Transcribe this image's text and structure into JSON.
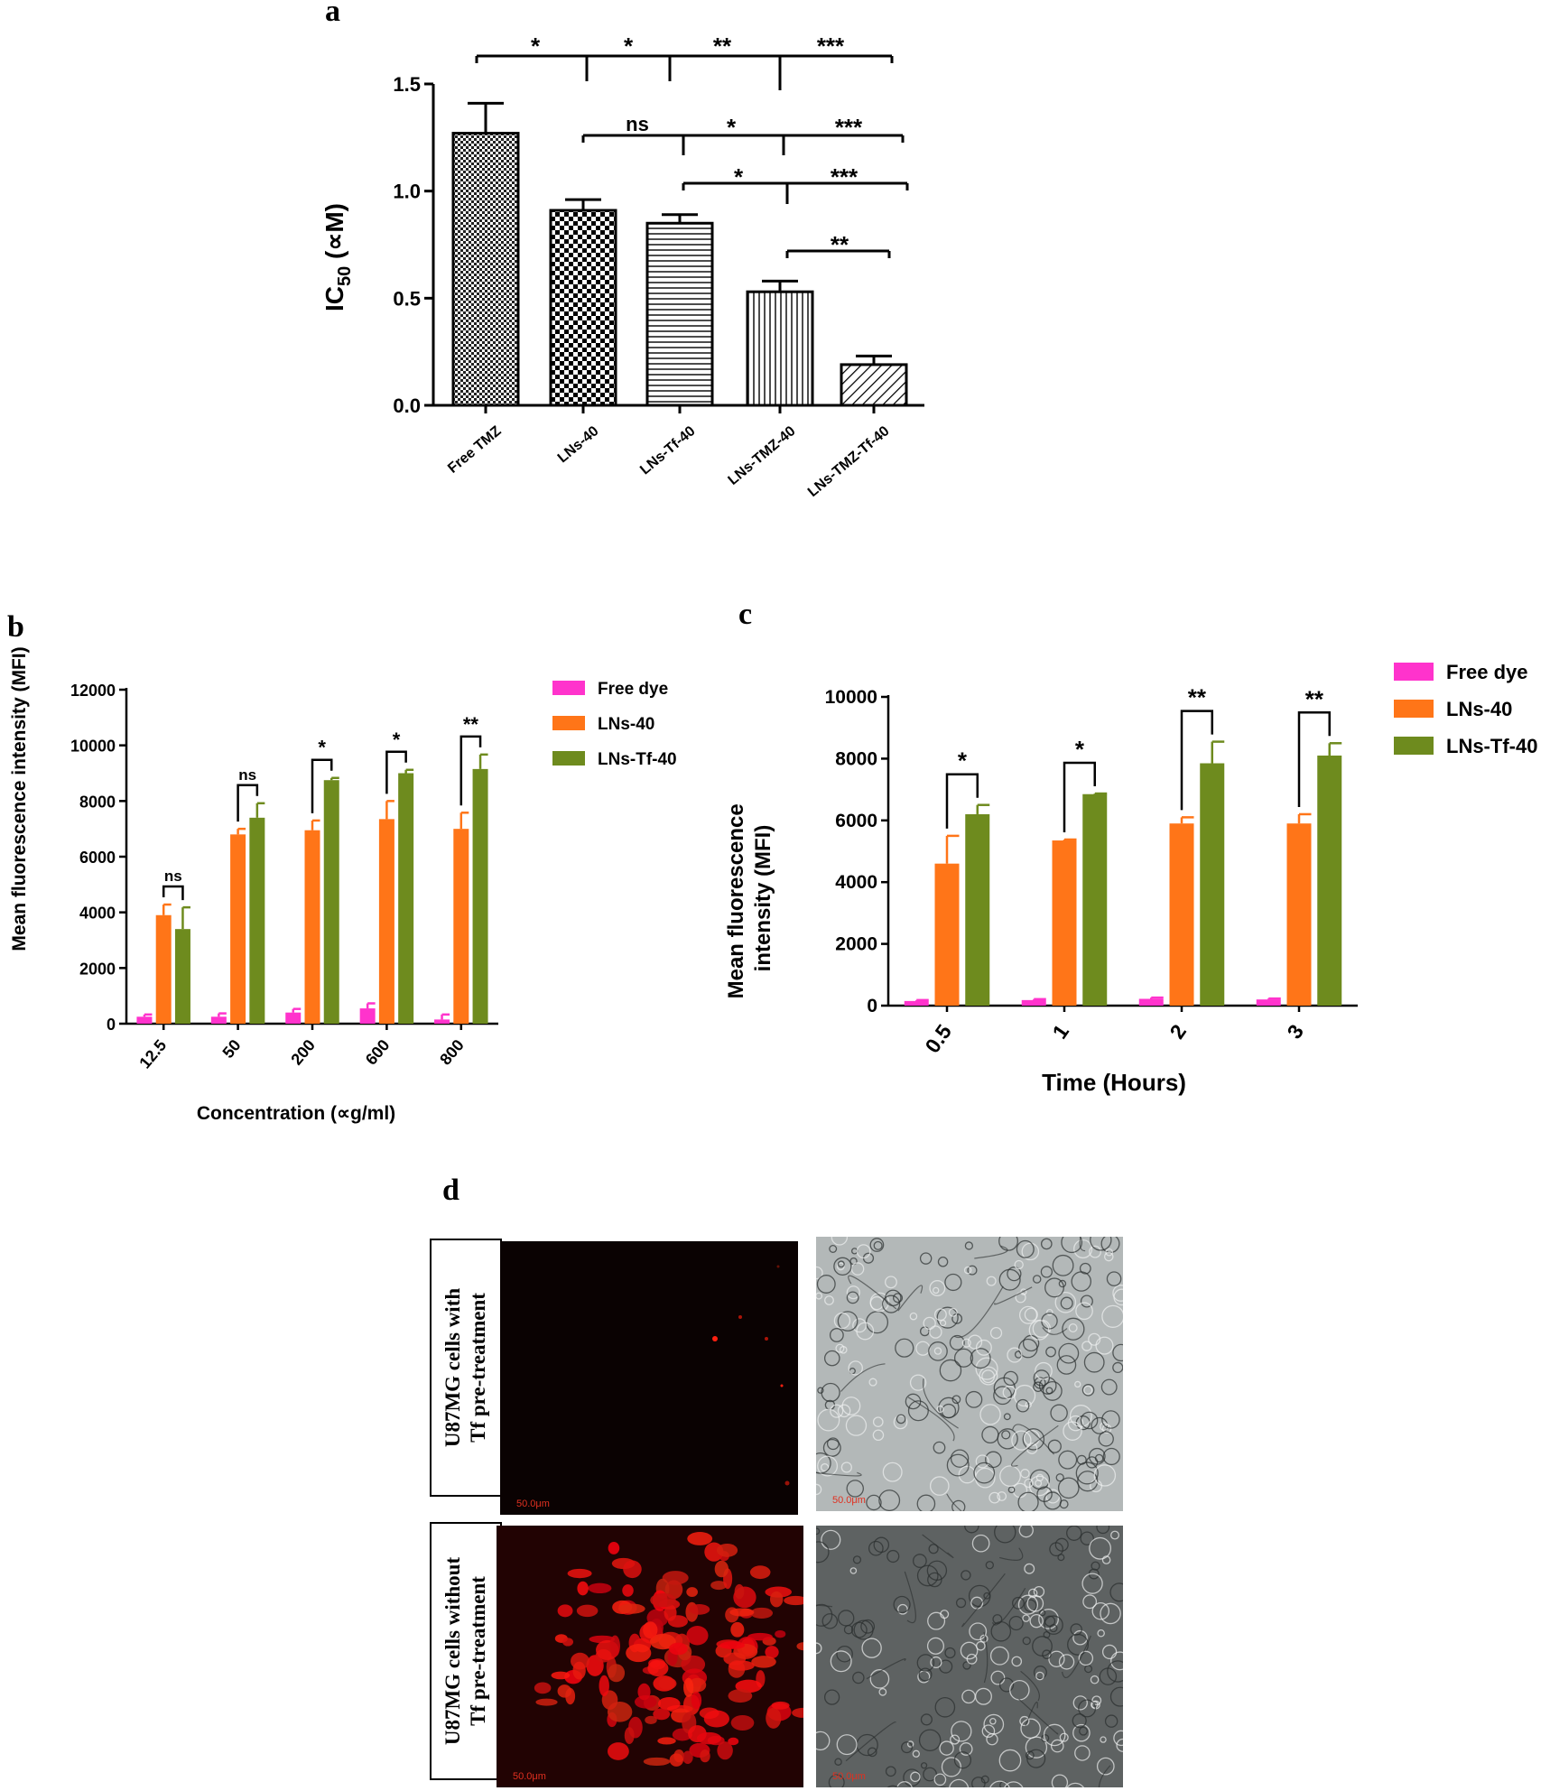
{
  "panels": {
    "a": "a",
    "b": "b",
    "c": "c",
    "d": "d"
  },
  "colors": {
    "free_dye": "#ff33cc",
    "lns40": "#ff7518",
    "lnstf40": "#6e8b1e",
    "tf_with": "#0a0202",
    "tf_without": "#220303",
    "cells_red": "#ff2010",
    "dic_light": "#b3b8b8",
    "dic_dark": "#5e6262"
  },
  "chart_data": [
    {
      "id": "a",
      "type": "bar",
      "ylabel_main": "IC",
      "ylabel_sub": "50",
      "ylabel_unit": " (∝M)",
      "ylim": [
        0,
        1.5
      ],
      "yticks": [
        "0.0",
        "0.5",
        "1.0",
        "1.5"
      ],
      "categories": [
        "Free TMZ",
        "LNs-40",
        "LNs-Tf-40",
        "LNs-TMZ-40",
        "LNs-TMZ-Tf-40"
      ],
      "values": [
        1.27,
        0.91,
        0.85,
        0.53,
        0.19
      ],
      "errors": [
        0.14,
        0.05,
        0.04,
        0.05,
        0.04
      ],
      "patterns": [
        "checker-fine",
        "checker-coarse",
        "hlines",
        "vlines",
        "diagonal"
      ],
      "annotations": [
        {
          "labels": [
            "*",
            "*",
            "**",
            "***"
          ],
          "level": 1.62
        },
        {
          "labels": [
            "ns",
            "*",
            "***"
          ],
          "level": 1.25
        },
        {
          "labels": [
            "*",
            "***"
          ],
          "level": 1.0
        },
        {
          "labels": [
            "**"
          ],
          "level": 0.72
        }
      ]
    },
    {
      "id": "b",
      "type": "bar",
      "ylabel": "Mean fluorescence intensity (MFI)",
      "xlabel": "Concentration (∝g/ml)",
      "ylim": [
        0,
        12000
      ],
      "yticks": [
        "0",
        "2000",
        "4000",
        "6000",
        "8000",
        "10000",
        "12000"
      ],
      "categories": [
        "12.5",
        "50",
        "200",
        "600",
        "800"
      ],
      "series": [
        {
          "name": "Free dye",
          "values": [
            250,
            250,
            400,
            550,
            150
          ],
          "errors": [
            80,
            120,
            130,
            180,
            180
          ]
        },
        {
          "name": "LNs-40",
          "values": [
            3900,
            6800,
            6950,
            7350,
            7000
          ],
          "errors": [
            380,
            200,
            350,
            650,
            580
          ]
        },
        {
          "name": "LNs-Tf-40",
          "values": [
            3400,
            7400,
            8750,
            9000,
            9150
          ],
          "errors": [
            780,
            520,
            80,
            120,
            520
          ]
        }
      ],
      "significance": [
        "ns",
        "ns",
        "*",
        "*",
        "**"
      ]
    },
    {
      "id": "c",
      "type": "bar",
      "ylabel_line1": "Mean fluorescence",
      "ylabel_line2": "intensity (MFI)",
      "xlabel": "Time (Hours)",
      "ylim": [
        0,
        10000
      ],
      "yticks": [
        "0",
        "2000",
        "4000",
        "6000",
        "8000",
        "10000"
      ],
      "categories": [
        "0.5",
        "1",
        "2",
        "3"
      ],
      "series": [
        {
          "name": "Free dye",
          "values": [
            150,
            180,
            220,
            200
          ],
          "errors": [
            30,
            30,
            40,
            30
          ]
        },
        {
          "name": "LNs-40",
          "values": [
            4600,
            5350,
            5900,
            5900
          ],
          "errors": [
            900,
            30,
            200,
            300
          ]
        },
        {
          "name": "LNs-Tf-40",
          "values": [
            6200,
            6850,
            7850,
            8100
          ],
          "errors": [
            300,
            20,
            700,
            400
          ]
        }
      ],
      "significance": [
        "*",
        "*",
        "**",
        "**"
      ]
    }
  ],
  "micrographs": {
    "row1_label": "U87MG cells with\nTf pre-treatment",
    "row2_label": "U87MG cells without\nTf pre-treatment",
    "scale": "50.0μm"
  }
}
